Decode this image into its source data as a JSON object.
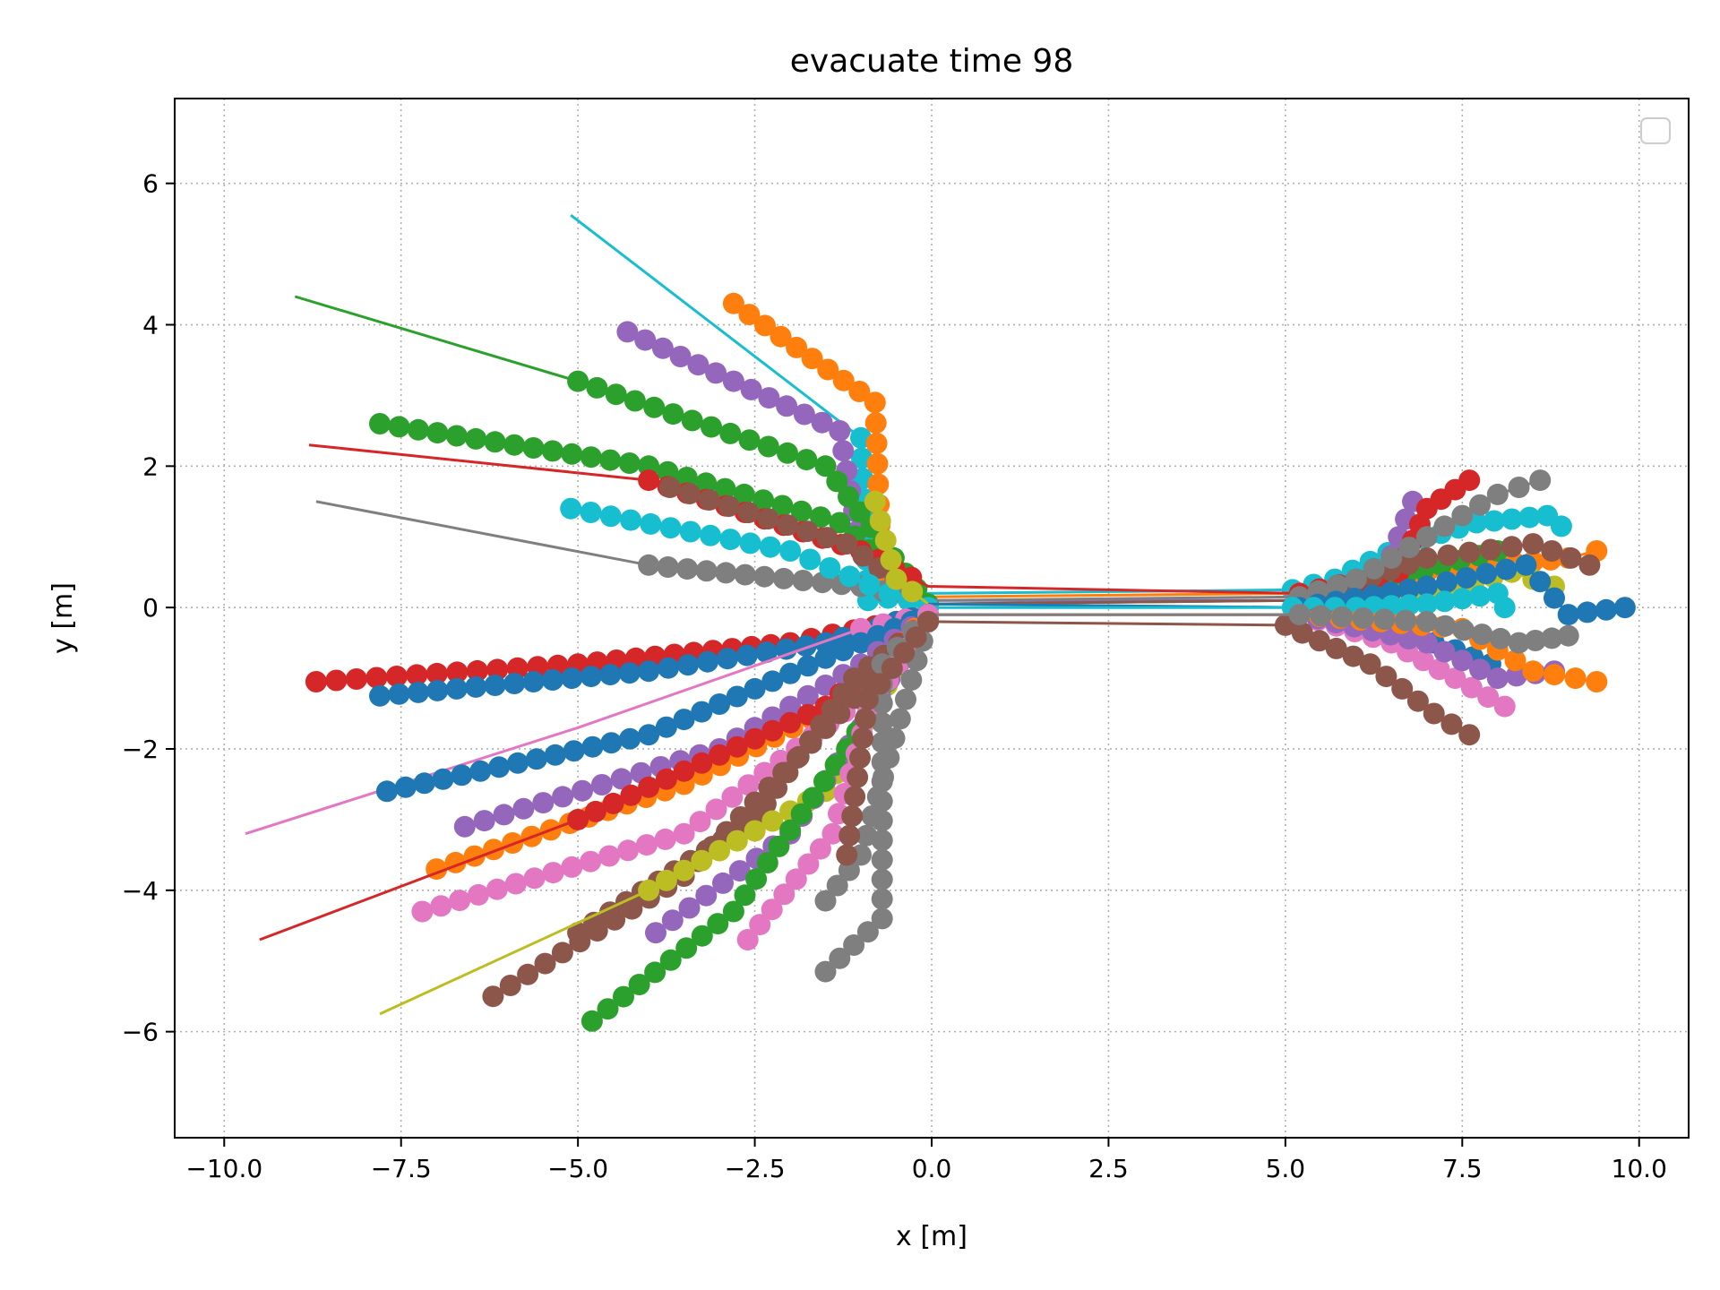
{
  "chart_data": {
    "type": "scatter",
    "title": "evacuate time 98",
    "xlabel": "x [m]",
    "ylabel": "y [m]",
    "xlim": [
      -10.7,
      10.7
    ],
    "ylim": [
      -7.5,
      7.2
    ],
    "xticks": [
      -10.0,
      -7.5,
      -5.0,
      -2.5,
      0.0,
      2.5,
      5.0,
      7.5,
      10.0
    ],
    "xtick_labels": [
      "−10.0",
      "−7.5",
      "−5.0",
      "−2.5",
      "0.0",
      "2.5",
      "5.0",
      "7.5",
      "10.0"
    ],
    "yticks": [
      -6,
      -4,
      -2,
      0,
      2,
      4,
      6
    ],
    "ytick_labels": [
      "−6",
      "−4",
      "−2",
      "0",
      "2",
      "4",
      "6"
    ],
    "grid": true,
    "legend": "upper-right (empty)",
    "colors": {
      "blue": "#1f77b4",
      "orange": "#ff7f0e",
      "green": "#2ca02c",
      "red": "#d62728",
      "purple": "#9467bd",
      "brown": "#8c564b",
      "pink": "#e377c2",
      "gray": "#7f7f7f",
      "olive": "#bcbd22",
      "cyan": "#17becf"
    },
    "series": [
      {
        "color": "cyan",
        "x": [
          -5.1,
          -1.0,
          -0.9,
          -0.05,
          5.1,
          5.7,
          6.7,
          7.7,
          8.7,
          8.9
        ],
        "y": [
          5.55,
          2.4,
          0.1,
          0.2,
          0.25,
          0.4,
          0.9,
          1.2,
          1.3,
          1.15
        ]
      },
      {
        "color": "orange",
        "x": [
          -2.8,
          -0.8,
          -0.7,
          -0.05,
          5.2,
          6.0,
          7.0,
          8.0,
          9.0,
          9.4
        ],
        "y": [
          4.3,
          2.9,
          0.3,
          0.15,
          0.2,
          0.3,
          0.5,
          0.6,
          0.7,
          0.8
        ]
      },
      {
        "color": "purple",
        "x": [
          -4.3,
          -1.3,
          -1.0,
          -0.05,
          5.2,
          6.3,
          6.6,
          6.8
        ],
        "y": [
          3.9,
          2.5,
          0.8,
          0.1,
          0.1,
          0.2,
          1.0,
          1.5
        ]
      },
      {
        "color": "green",
        "x": [
          -9.0,
          -5.0,
          -1.5,
          -0.05,
          5.2,
          6.2,
          7.2,
          8.0
        ],
        "y": [
          4.4,
          3.2,
          2.0,
          0.05,
          0.1,
          0.3,
          0.6,
          0.8
        ]
      },
      {
        "color": "green",
        "x": [
          -7.8,
          -4.0,
          -1.3,
          -0.05
        ],
        "y": [
          2.6,
          2.0,
          1.2,
          0.05
        ]
      },
      {
        "color": "red",
        "x": [
          -8.8,
          -4.0,
          -1.0,
          -0.05,
          5.2,
          6.6,
          7.0,
          7.6
        ],
        "y": [
          2.3,
          1.8,
          0.8,
          0.3,
          0.2,
          0.5,
          1.4,
          1.8
        ]
      },
      {
        "color": "brown",
        "x": [
          -3.7,
          -1.2,
          -0.05,
          5.2,
          7.0,
          8.5,
          9.3
        ],
        "y": [
          1.7,
          0.9,
          0.05,
          0.1,
          0.7,
          0.9,
          0.6
        ]
      },
      {
        "color": "gray",
        "x": [
          -8.7,
          -4.0,
          -1.0,
          -0.05,
          5.2,
          6.0,
          7.0,
          8.0,
          8.6
        ],
        "y": [
          1.5,
          0.6,
          0.3,
          0.1,
          0.15,
          0.4,
          1.0,
          1.6,
          1.8
        ]
      },
      {
        "color": "cyan",
        "x": [
          -5.1,
          -2.0,
          -0.6,
          -0.05
        ],
        "y": [
          1.4,
          0.8,
          0.2,
          0.0
        ]
      },
      {
        "color": "olive",
        "x": [
          -0.8,
          -0.5,
          -0.05,
          5.2,
          6.5,
          7.4,
          8.2,
          8.8
        ],
        "y": [
          1.5,
          0.4,
          0.05,
          0.0,
          0.1,
          0.3,
          0.5,
          0.3
        ]
      },
      {
        "color": "blue",
        "x": [
          -0.05,
          5.2,
          7.0,
          8.4,
          9.0,
          9.8
        ],
        "y": [
          0.05,
          0.0,
          0.3,
          0.6,
          -0.1,
          0.0
        ]
      },
      {
        "color": "cyan",
        "x": [
          -0.05,
          5.1,
          6.0,
          7.0,
          8.0,
          8.1
        ],
        "y": [
          0.0,
          0.0,
          0.0,
          0.05,
          0.2,
          0.0
        ]
      },
      {
        "color": "red",
        "x": [
          -8.7,
          -5.0,
          -2.0,
          -0.5,
          -0.05
        ],
        "y": [
          -1.05,
          -0.8,
          -0.5,
          -0.2,
          -0.1
        ]
      },
      {
        "color": "blue",
        "x": [
          -7.8,
          -4.0,
          -1.5,
          -0.5,
          -0.05,
          5.2,
          6.5,
          7.4,
          7.9
        ],
        "y": [
          -1.25,
          -0.9,
          -0.5,
          -0.2,
          -0.1,
          -0.1,
          -0.3,
          -0.6,
          -0.8
        ]
      },
      {
        "color": "pink",
        "x": [
          -9.7,
          -5.0,
          -1.0,
          -0.05,
          5.2,
          6.5,
          7.4,
          8.1
        ],
        "y": [
          -3.2,
          -1.7,
          -0.3,
          -0.1,
          -0.1,
          -0.5,
          -1.0,
          -1.4
        ]
      },
      {
        "color": "blue",
        "x": [
          -7.7,
          -4.0,
          -1.0,
          -0.05
        ],
        "y": [
          -2.6,
          -1.8,
          -0.5,
          -0.1
        ]
      },
      {
        "color": "purple",
        "x": [
          -6.6,
          -3.0,
          -1.0,
          -0.05,
          5.2,
          7.0,
          8.0,
          8.8
        ],
        "y": [
          -3.1,
          -2.0,
          -0.8,
          -0.1,
          -0.1,
          -0.5,
          -1.0,
          -0.9
        ]
      },
      {
        "color": "orange",
        "x": [
          -7.0,
          -3.5,
          -1.2,
          -0.05,
          5.2,
          7.5,
          8.5,
          9.4
        ],
        "y": [
          -3.7,
          -2.5,
          -1.3,
          -0.1,
          -0.1,
          -0.3,
          -0.9,
          -1.05
        ]
      },
      {
        "color": "red",
        "x": [
          -9.5,
          -5.0,
          -1.5,
          -0.05
        ],
        "y": [
          -4.7,
          -3.0,
          -1.4,
          -0.15
        ]
      },
      {
        "color": "pink",
        "x": [
          -7.2,
          -3.5,
          -1.0,
          -0.05
        ],
        "y": [
          -4.3,
          -3.2,
          -1.3,
          -0.1
        ]
      },
      {
        "color": "brown",
        "x": [
          -5.0,
          -2.5,
          -1.1,
          -0.05,
          5.0,
          6.2,
          7.1,
          7.6
        ],
        "y": [
          -4.6,
          -3.0,
          -1.0,
          -0.2,
          -0.25,
          -0.8,
          -1.5,
          -1.8
        ]
      },
      {
        "color": "brown",
        "x": [
          -6.2,
          -3.5,
          -1.3,
          -0.05
        ],
        "y": [
          -5.5,
          -3.8,
          -1.5,
          -0.2
        ]
      },
      {
        "color": "olive",
        "x": [
          -7.8,
          -4.0,
          -1.5,
          -0.05
        ],
        "y": [
          -5.75,
          -4.0,
          -2.6,
          -0.1
        ]
      },
      {
        "color": "purple",
        "x": [
          -3.9,
          -2.0,
          -1.0,
          -0.05
        ],
        "y": [
          -4.6,
          -3.2,
          -1.7,
          -0.1
        ]
      },
      {
        "color": "green",
        "x": [
          -4.8,
          -2.8,
          -1.2,
          -0.05
        ],
        "y": [
          -5.85,
          -4.3,
          -2.0,
          -0.1
        ]
      },
      {
        "color": "pink",
        "x": [
          -2.6,
          -1.4,
          -0.9,
          -0.05
        ],
        "y": [
          -4.7,
          -3.2,
          -1.5,
          -0.1
        ]
      },
      {
        "color": "gray",
        "x": [
          -1.5,
          -0.7,
          -0.7,
          -0.05,
          5.2,
          7.0,
          8.3,
          9.0
        ],
        "y": [
          -5.15,
          -4.4,
          -0.8,
          -0.1,
          -0.1,
          -0.2,
          -0.5,
          -0.4
        ]
      },
      {
        "color": "gray",
        "x": [
          -1.5,
          -1.0,
          -0.05
        ],
        "y": [
          -4.15,
          -3.5,
          -0.2
        ]
      },
      {
        "color": "brown",
        "x": [
          -1.2,
          -0.9,
          -0.05
        ],
        "y": [
          -3.5,
          -1.3,
          -0.2
        ]
      }
    ]
  }
}
